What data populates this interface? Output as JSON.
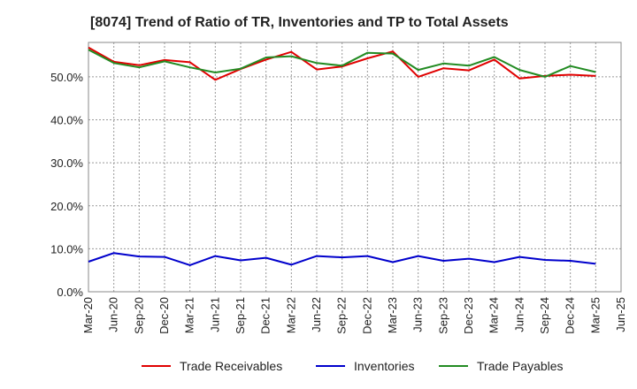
{
  "chart_data": {
    "type": "line",
    "title": "[8074]  Trend of Ratio of TR, Inventories and TP to Total Assets",
    "xlabel": "",
    "ylabel": "",
    "x": [
      "Mar-20",
      "Jun-20",
      "Sep-20",
      "Dec-20",
      "Mar-21",
      "Jun-21",
      "Sep-21",
      "Dec-21",
      "Mar-22",
      "Jun-22",
      "Sep-22",
      "Dec-22",
      "Mar-23",
      "Jun-23",
      "Sep-23",
      "Dec-23",
      "Mar-24",
      "Jun-24",
      "Sep-24",
      "Dec-24",
      "Mar-25"
    ],
    "x_tick_labels": [
      "Mar-20",
      "Jun-20",
      "Sep-20",
      "Dec-20",
      "Mar-21",
      "Jun-21",
      "Sep-21",
      "Dec-21",
      "Mar-22",
      "Jun-22",
      "Sep-22",
      "Dec-22",
      "Mar-23",
      "Jun-23",
      "Sep-23",
      "Dec-23",
      "Mar-24",
      "Jun-24",
      "Sep-24",
      "Dec-24",
      "Mar-25",
      "Jun-25"
    ],
    "y_tick_labels": [
      "0.0%",
      "10.0%",
      "20.0%",
      "30.0%",
      "40.0%",
      "50.0%"
    ],
    "y_ticks": [
      0,
      10,
      20,
      30,
      40,
      50
    ],
    "ylim": [
      0,
      58
    ],
    "grid": true,
    "legend_position": "bottom",
    "series": [
      {
        "name": "Trade Receivables",
        "color": "#e00000",
        "values": [
          56.8,
          53.5,
          52.7,
          53.9,
          53.4,
          49.3,
          51.8,
          54.0,
          55.8,
          51.7,
          52.4,
          54.3,
          55.9,
          50.0,
          52.0,
          51.5,
          54.0,
          49.6,
          50.2,
          50.5,
          50.2
        ]
      },
      {
        "name": "Inventories",
        "color": "#0000cc",
        "values": [
          7.0,
          9.0,
          8.2,
          8.1,
          6.2,
          8.3,
          7.3,
          7.9,
          6.3,
          8.3,
          8.0,
          8.3,
          6.9,
          8.3,
          7.2,
          7.7,
          6.9,
          8.1,
          7.4,
          7.2,
          6.5
        ]
      },
      {
        "name": "Trade Payables",
        "color": "#228b22",
        "values": [
          56.3,
          53.2,
          52.2,
          53.6,
          52.2,
          51.0,
          51.9,
          54.5,
          54.8,
          53.2,
          52.6,
          55.6,
          55.4,
          51.6,
          53.1,
          52.6,
          54.6,
          51.6,
          50.0,
          52.5,
          51.1
        ]
      }
    ]
  }
}
